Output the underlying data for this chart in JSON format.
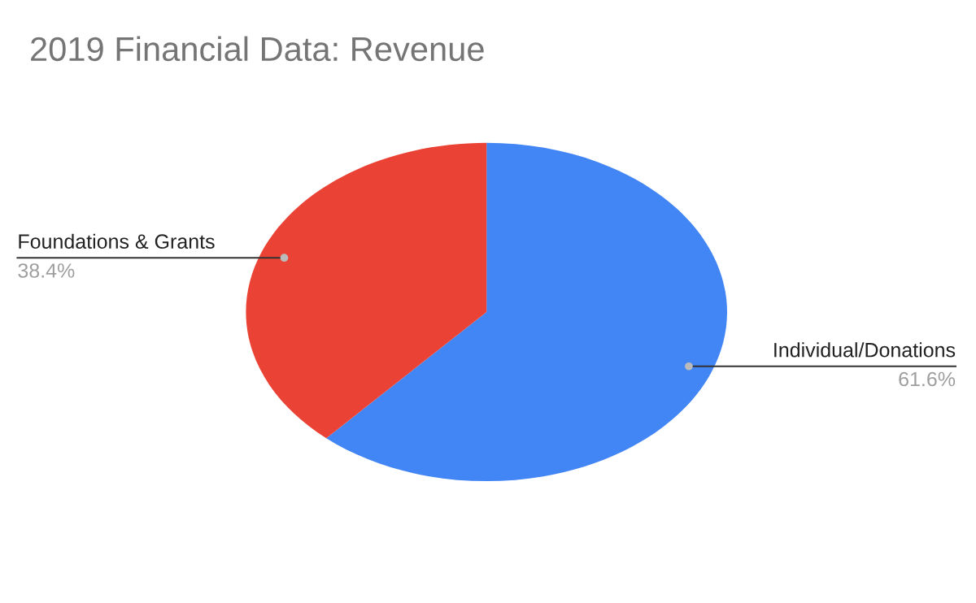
{
  "chart_data": {
    "type": "pie",
    "title": "2019 Financial Data: Revenue",
    "categories": [
      "Individual/Donations",
      "Foundations & Grants"
    ],
    "values": [
      61.6,
      38.4
    ],
    "colors": [
      "#4285f4",
      "#ea4335"
    ],
    "value_labels": [
      "61.6%",
      "38.4%"
    ],
    "legend": false
  }
}
